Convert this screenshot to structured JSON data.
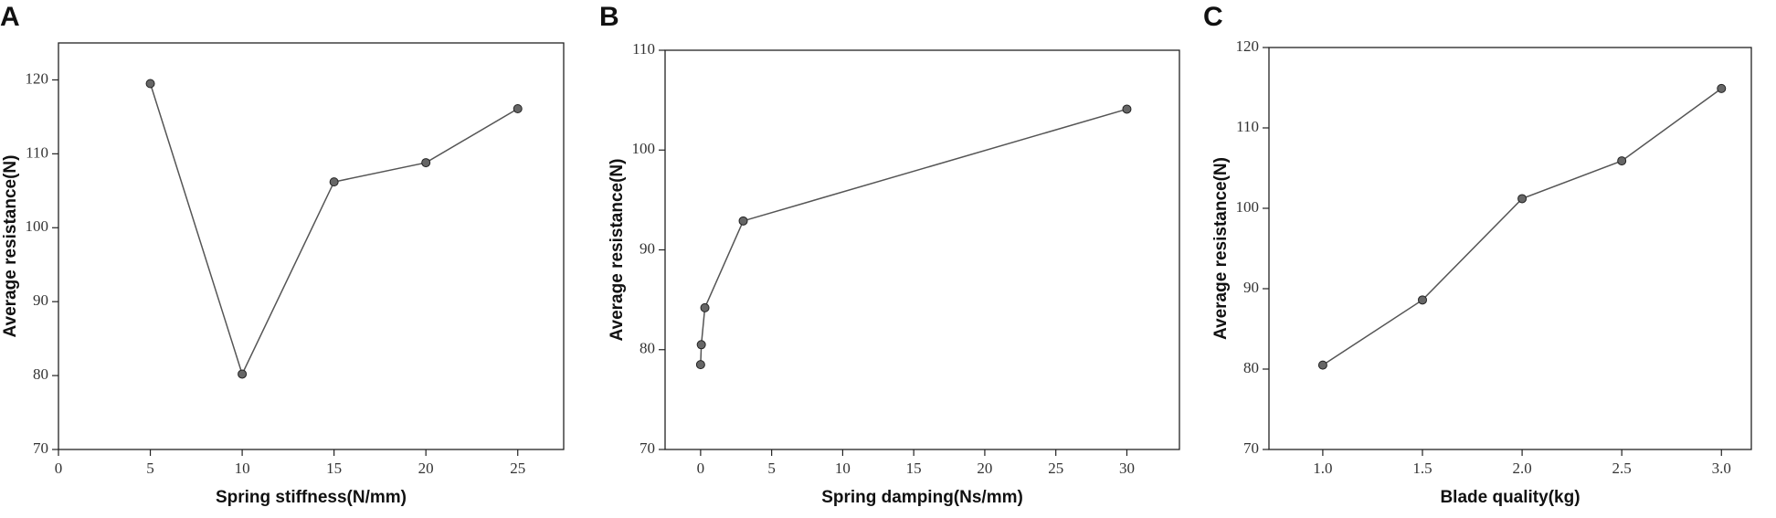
{
  "chart_data": [
    {
      "type": "line",
      "panel": "A",
      "x_label": "Spring stiffness(N/mm)",
      "y_label": "Average resistance(N)",
      "x": [
        5,
        10,
        15,
        20,
        25
      ],
      "values": [
        119.5,
        80.2,
        106.2,
        108.8,
        116.1
      ],
      "color": "#555555",
      "xlim": [
        0,
        27.5
      ],
      "ylim": [
        70,
        125
      ],
      "xticks": [
        0,
        5,
        10,
        15,
        20,
        25
      ],
      "yticks": [
        70,
        80,
        90,
        100,
        110,
        120
      ]
    },
    {
      "type": "line",
      "panel": "B",
      "x_label": "Spring damping(Ns/mm)",
      "y_label": "Average resistance(N)",
      "x": [
        0,
        0.05,
        0.3,
        3,
        30
      ],
      "values": [
        78.5,
        80.5,
        84.2,
        92.9,
        104.1
      ],
      "color": "#555555",
      "xlim": [
        -2.5,
        33.7
      ],
      "ylim": [
        70,
        110
      ],
      "xticks": [
        0,
        5,
        10,
        15,
        20,
        25,
        30
      ],
      "yticks": [
        70,
        80,
        90,
        100,
        110
      ]
    },
    {
      "type": "line",
      "panel": "C",
      "x_label": "Blade quality(kg)",
      "y_label": "Average resistance(N)",
      "x": [
        1,
        1.5,
        2,
        2.5,
        3
      ],
      "values": [
        80.5,
        88.6,
        101.2,
        105.9,
        114.9
      ],
      "color": "#555555",
      "xlim": [
        0.73,
        3.15
      ],
      "ylim": [
        70,
        120
      ],
      "xticks": [
        {
          "value": 1,
          "label": "1.0"
        },
        1.5,
        {
          "value": 2,
          "label": "2.0"
        },
        2.5,
        {
          "value": 3,
          "label": "3.0"
        }
      ],
      "yticks": [
        70,
        80,
        90,
        100,
        110,
        120
      ]
    }
  ]
}
